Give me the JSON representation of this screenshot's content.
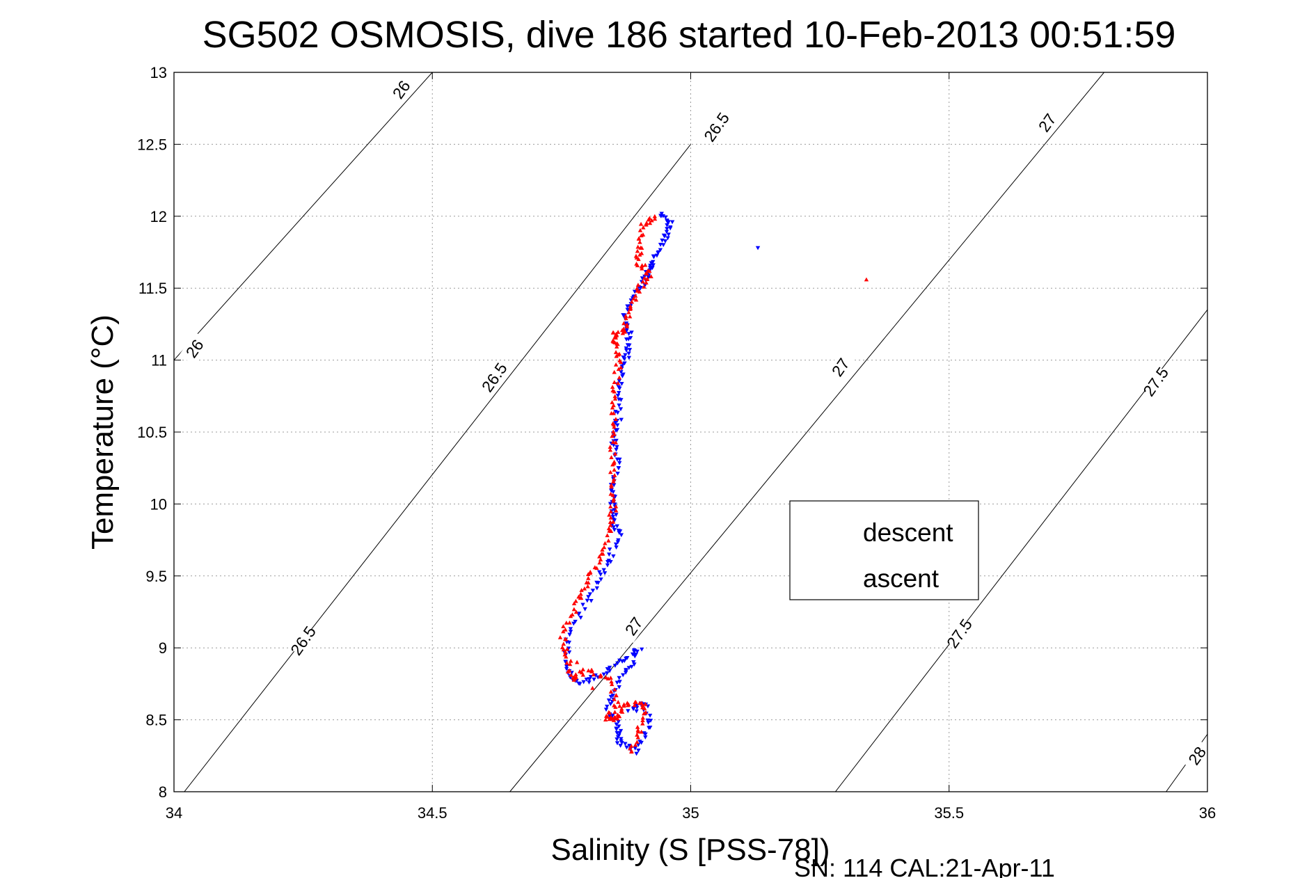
{
  "chart_data": {
    "type": "scatter",
    "title": "SG502 OSMOSIS, dive 186 started 10-Feb-2013 00:51:59",
    "xlabel": "Salinity (S [PSS-78])",
    "ylabel": "Temperature (°C)",
    "xlim": [
      34,
      36
    ],
    "ylim": [
      8,
      13
    ],
    "x_ticks": [
      "34",
      "34.5",
      "35",
      "35.5",
      "36"
    ],
    "y_ticks": [
      "8",
      "8.5",
      "9",
      "9.5",
      "10",
      "10.5",
      "11",
      "11.5",
      "12",
      "12.5",
      "13"
    ],
    "grid": true,
    "legend_position": "center-right",
    "footer": "SN: 114  CAL:21-Apr-11",
    "density_contours": [
      {
        "label": "26",
        "points": [
          [
            34.0,
            11.0
          ],
          [
            34.5,
            13.0
          ]
        ]
      },
      {
        "label": "26.5",
        "points": [
          [
            34.02,
            8.0
          ],
          [
            35.0,
            12.5
          ]
        ]
      },
      {
        "label": "27",
        "points": [
          [
            34.65,
            8.0
          ],
          [
            35.8,
            13.0
          ]
        ]
      },
      {
        "label": "27.5",
        "points": [
          [
            35.28,
            8.0
          ],
          [
            36.0,
            11.35
          ]
        ]
      },
      {
        "label": "28",
        "points": [
          [
            35.92,
            8.0
          ],
          [
            36.0,
            8.4
          ]
        ]
      }
    ],
    "contour_labels": [
      {
        "text": "26",
        "s": 34.44,
        "t": 12.88
      },
      {
        "text": "26",
        "s": 34.04,
        "t": 11.08
      },
      {
        "text": "26.5",
        "s": 35.05,
        "t": 12.62
      },
      {
        "text": "26.5",
        "s": 34.62,
        "t": 10.88
      },
      {
        "text": "26.5",
        "s": 34.25,
        "t": 9.05
      },
      {
        "text": "27",
        "s": 35.69,
        "t": 12.65
      },
      {
        "text": "27",
        "s": 35.29,
        "t": 10.95
      },
      {
        "text": "27",
        "s": 34.89,
        "t": 9.15
      },
      {
        "text": "27.5",
        "s": 35.9,
        "t": 10.85
      },
      {
        "text": "27.5",
        "s": 35.52,
        "t": 9.1
      },
      {
        "text": "28",
        "s": 35.98,
        "t": 8.25
      }
    ],
    "series": [
      {
        "name": "descent",
        "color": "#0000ff",
        "marker": "triangle-down",
        "path": [
          [
            34.94,
            12.01
          ],
          [
            34.96,
            11.95
          ],
          [
            34.95,
            11.85
          ],
          [
            34.93,
            11.72
          ],
          [
            34.92,
            11.62
          ],
          [
            34.91,
            11.55
          ],
          [
            34.89,
            11.42
          ],
          [
            34.87,
            11.3
          ],
          [
            34.88,
            11.2
          ],
          [
            34.88,
            11.08
          ],
          [
            34.87,
            10.95
          ],
          [
            34.86,
            10.8
          ],
          [
            34.86,
            10.6
          ],
          [
            34.85,
            10.45
          ],
          [
            34.86,
            10.3
          ],
          [
            34.85,
            10.12
          ],
          [
            34.85,
            10.0
          ],
          [
            34.85,
            9.88
          ],
          [
            34.86,
            9.78
          ],
          [
            34.84,
            9.6
          ],
          [
            34.82,
            9.45
          ],
          [
            34.79,
            9.25
          ],
          [
            34.76,
            9.05
          ],
          [
            34.76,
            8.85
          ],
          [
            34.78,
            8.75
          ],
          [
            34.82,
            8.8
          ],
          [
            34.86,
            8.9
          ],
          [
            34.9,
            9.0
          ],
          [
            34.88,
            8.85
          ],
          [
            34.85,
            8.7
          ],
          [
            34.84,
            8.55
          ],
          [
            34.86,
            8.45
          ],
          [
            34.86,
            8.35
          ],
          [
            34.89,
            8.28
          ],
          [
            34.92,
            8.45
          ],
          [
            34.91,
            8.62
          ],
          [
            34.88,
            8.55
          ]
        ],
        "outliers": [
          [
            35.13,
            11.78
          ]
        ]
      },
      {
        "name": "ascent",
        "color": "#ff0000",
        "marker": "triangle-up",
        "path": [
          [
            34.88,
            8.27
          ],
          [
            34.9,
            8.42
          ],
          [
            34.91,
            8.6
          ],
          [
            34.88,
            8.62
          ],
          [
            34.86,
            8.52
          ],
          [
            34.84,
            8.5
          ],
          [
            34.86,
            8.62
          ],
          [
            34.84,
            8.8
          ],
          [
            34.8,
            8.85
          ],
          [
            34.77,
            8.78
          ],
          [
            34.76,
            8.95
          ],
          [
            34.75,
            9.1
          ],
          [
            34.78,
            9.3
          ],
          [
            34.8,
            9.45
          ],
          [
            34.82,
            9.6
          ],
          [
            34.84,
            9.8
          ],
          [
            34.85,
            9.95
          ],
          [
            34.85,
            10.15
          ],
          [
            34.85,
            10.35
          ],
          [
            34.85,
            10.55
          ],
          [
            34.85,
            10.75
          ],
          [
            34.86,
            10.95
          ],
          [
            34.86,
            11.1
          ],
          [
            34.85,
            11.18
          ],
          [
            34.87,
            11.2
          ],
          [
            34.88,
            11.35
          ],
          [
            34.9,
            11.5
          ],
          [
            34.92,
            11.6
          ],
          [
            34.9,
            11.68
          ],
          [
            34.9,
            11.8
          ],
          [
            34.91,
            11.95
          ],
          [
            34.93,
            12.0
          ]
        ],
        "outliers": [
          [
            35.34,
            11.56
          ],
          [
            34.78,
            8.9
          ],
          [
            34.81,
            8.72
          ]
        ]
      }
    ]
  }
}
